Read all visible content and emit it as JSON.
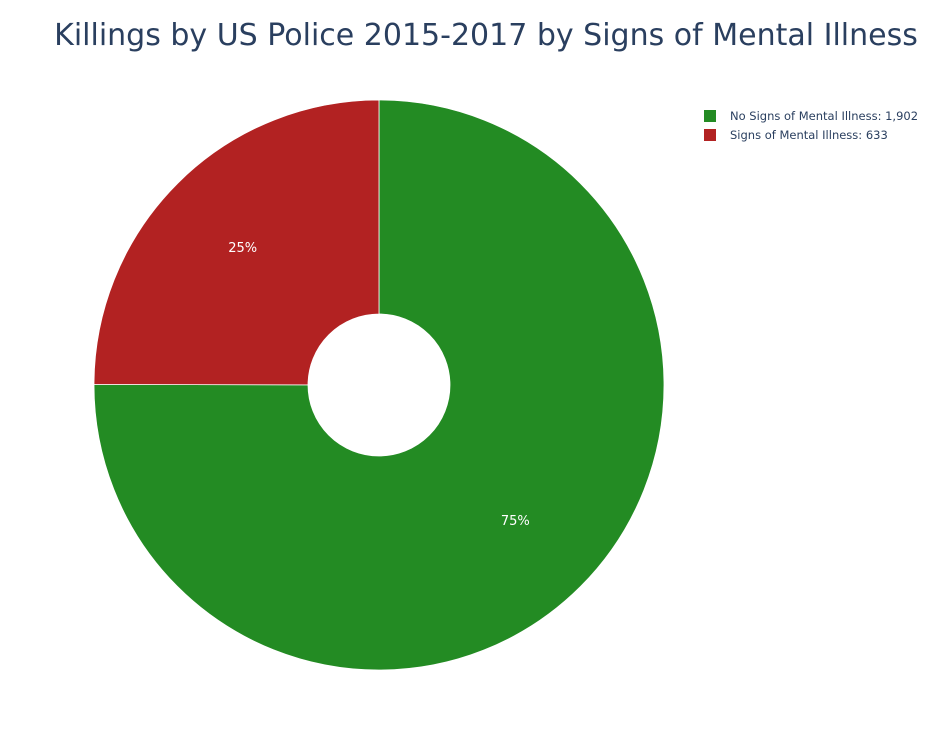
{
  "colors": {
    "no_signs": "#238b23",
    "signs": "#b22222",
    "text": "#2a3f5f"
  },
  "chart_data": {
    "type": "pie",
    "title": "Killings by US Police 2015-2017 by Signs of Mental Illness",
    "hole": true,
    "legend_position": "top-right",
    "slices": [
      {
        "label": "No Signs of Mental Illness",
        "legend_text": "No Signs of Mental Illness: 1,902",
        "value": 1902,
        "percent_label": "75%",
        "color": "#238b23"
      },
      {
        "label": "Signs of Mental Illness",
        "legend_text": "Signs of Mental Illness: 633",
        "value": 633,
        "percent_label": "25%",
        "color": "#b22222"
      }
    ]
  }
}
